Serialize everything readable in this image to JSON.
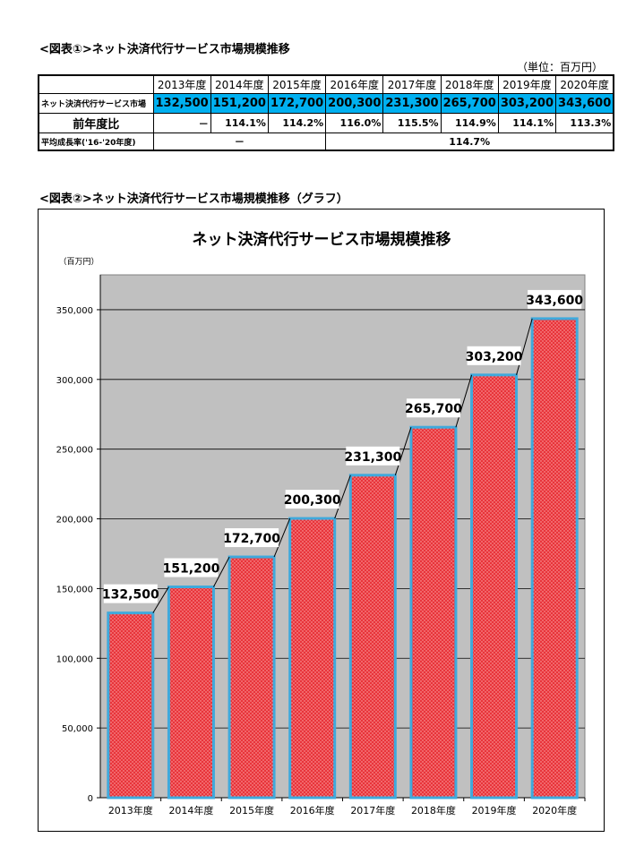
{
  "section1_title": "<図表①>ネット決済代行サービス市場規模推移",
  "unit": "（単位：百万円）",
  "table": {
    "years": [
      "2013年度",
      "2014年度",
      "2015年度",
      "2016年度",
      "2017年度",
      "2018年度",
      "2019年度",
      "2020年度"
    ],
    "rows": [
      {
        "label": "ネット決済代行サービス市場",
        "values": [
          "132,500",
          "151,200",
          "172,700",
          "200,300",
          "231,300",
          "265,700",
          "303,200",
          "343,600"
        ]
      },
      {
        "label": "前年度比",
        "values": [
          "－",
          "114.1%",
          "114.2%",
          "116.0%",
          "115.5%",
          "114.9%",
          "114.1%",
          "113.3%"
        ]
      }
    ],
    "cagr_label": "平均成長率('16-'20年度)",
    "cagr_left": "－",
    "cagr_right": "114.7%"
  },
  "section2_title": "<図表②>ネット決済代行サービス市場規模推移（グラフ）",
  "chart_data": {
    "type": "bar",
    "title": "ネット決済代行サービス市場規模推移",
    "ylabel": "（百万円）",
    "xlabel": "",
    "categories": [
      "2013年度",
      "2014年度",
      "2015年度",
      "2016年度",
      "2017年度",
      "2018年度",
      "2019年度",
      "2020年度"
    ],
    "values": [
      132500,
      151200,
      172700,
      200300,
      231300,
      265700,
      303200,
      343600
    ],
    "data_labels": [
      "132,500",
      "151,200",
      "172,700",
      "200,300",
      "231,300",
      "265,700",
      "303,200",
      "343,600"
    ],
    "ylim": [
      0,
      375000
    ],
    "yticks": [
      0,
      50000,
      100000,
      150000,
      200000,
      250000,
      300000,
      350000
    ],
    "ytick_labels": [
      "0",
      "50,000",
      "100,000",
      "150,000",
      "200,000",
      "250,000",
      "300,000",
      "350,000"
    ],
    "grid": true,
    "colors": {
      "bar_fill": "#e8343a",
      "bar_edge": "#3fa9dc",
      "plot_bg": "#c0c0c0",
      "label_bg": "#ffffff",
      "table_highlight": "#00b0f0"
    }
  }
}
